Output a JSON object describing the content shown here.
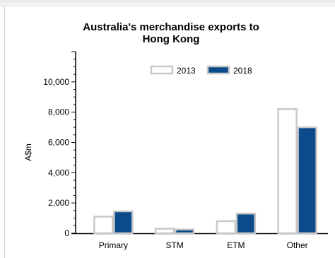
{
  "chart_data": {
    "type": "bar",
    "title": "Australia's merchandise exports to Hong Kong",
    "title_lines": [
      "Australia's merchandise exports to",
      "Hong Kong"
    ],
    "ylabel": "A$m",
    "xlabel": "",
    "categories": [
      "Primary",
      "STM",
      "ETM",
      "Other"
    ],
    "ylim": [
      0,
      12000
    ],
    "yticks": [
      0,
      2000,
      4000,
      6000,
      8000,
      10000
    ],
    "ytick_labels": [
      "0",
      "2,000",
      "4,000",
      "6,000",
      "8,000",
      "10,000"
    ],
    "legend_position": "top",
    "grid": false,
    "series": [
      {
        "name": "2013",
        "values": [
          1100,
          300,
          800,
          8200
        ],
        "fill": "#ffffff",
        "stroke": "#c8c8c8"
      },
      {
        "name": "2018",
        "values": [
          1450,
          250,
          1300,
          7000
        ],
        "fill": "#0b4a8b",
        "stroke": "#c8c8c8"
      }
    ]
  }
}
